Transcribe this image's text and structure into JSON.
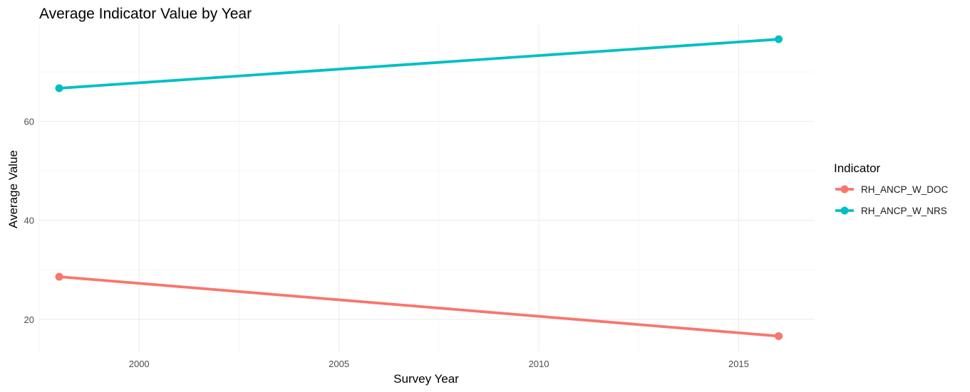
{
  "chart_data": {
    "type": "line",
    "title": "Average Indicator Value by Year",
    "xlabel": "Survey Year",
    "ylabel": "Average Value",
    "xlim": [
      1997.5,
      2016.9
    ],
    "ylim": [
      13.5,
      79.5
    ],
    "x_ticks": [
      2000,
      2005,
      2010,
      2015
    ],
    "x_minor_ticks": [
      1997.5,
      2002.5,
      2007.5,
      2012.5
    ],
    "y_ticks": [
      20,
      40,
      60
    ],
    "y_minor_ticks": [
      30,
      50,
      70
    ],
    "grid": true,
    "legend": {
      "title": "Indicator",
      "position": "right"
    },
    "series": [
      {
        "name": "RH_ANCP_W_DOC",
        "color": "#F8766D",
        "x": [
          1998,
          2016
        ],
        "y": [
          28.6,
          16.6
        ]
      },
      {
        "name": "RH_ANCP_W_NRS",
        "color": "#00BFC4",
        "x": [
          1998,
          2016
        ],
        "y": [
          66.7,
          76.6
        ]
      }
    ]
  }
}
